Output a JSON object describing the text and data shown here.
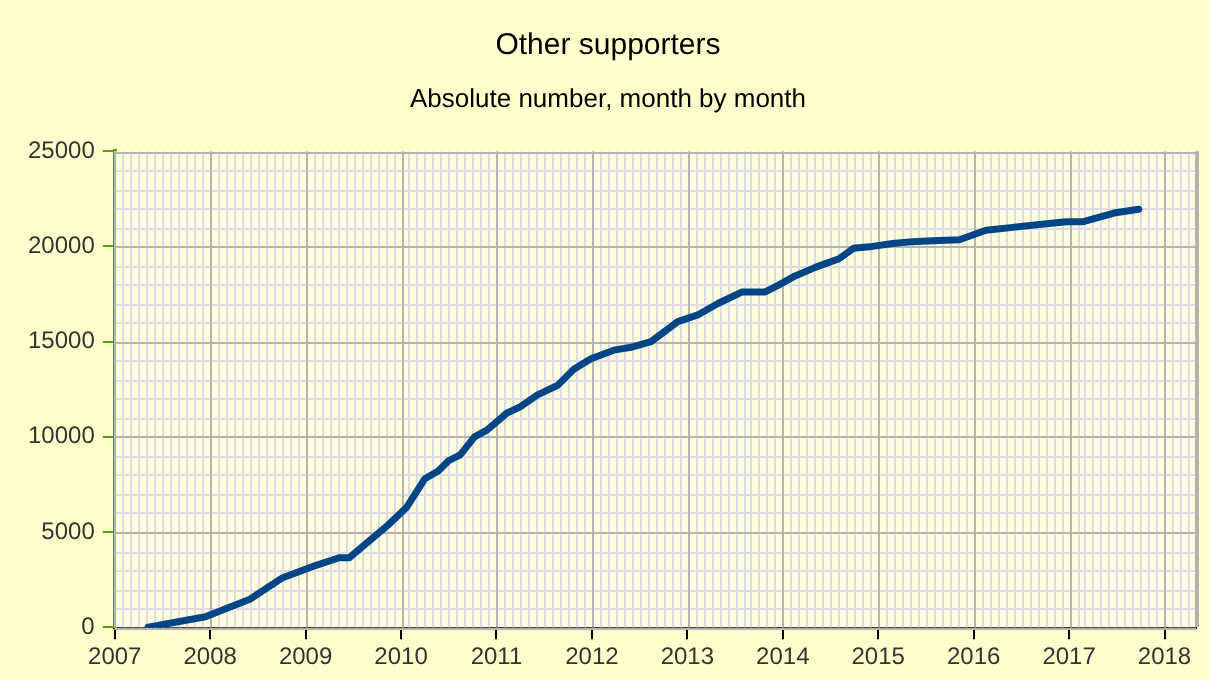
{
  "chart_data": {
    "type": "line",
    "title": "Other supporters",
    "subtitle": "Absolute number, month by month",
    "x": [
      2007.35,
      2007.95,
      2008.41,
      2008.76,
      2009.11,
      2009.35,
      2009.46,
      2009.6,
      2009.86,
      2010.06,
      2010.25,
      2010.39,
      2010.5,
      2010.62,
      2010.77,
      2010.9,
      2011.11,
      2011.24,
      2011.43,
      2011.64,
      2011.81,
      2011.99,
      2012.23,
      2012.41,
      2012.62,
      2012.9,
      2013.11,
      2013.32,
      2013.57,
      2013.81,
      2013.95,
      2014.13,
      2014.34,
      2014.59,
      2014.74,
      2014.94,
      2015.15,
      2015.36,
      2015.57,
      2015.85,
      2016.13,
      2016.41,
      2016.69,
      2016.97,
      2017.15,
      2017.47,
      2017.73
    ],
    "series": [
      {
        "color": "#004586",
        "values": [
          0,
          550,
          1450,
          2600,
          3250,
          3650,
          3650,
          4250,
          5350,
          6300,
          7800,
          8200,
          8750,
          9050,
          10000,
          10350,
          11250,
          11550,
          12200,
          12700,
          13550,
          14100,
          14550,
          14700,
          15000,
          16050,
          16400,
          17000,
          17600,
          17600,
          17950,
          18450,
          18900,
          19350,
          19900,
          20000,
          20150,
          20250,
          20300,
          20350,
          20850,
          21000,
          21150,
          21300,
          21300,
          21750,
          21950
        ]
      }
    ],
    "xlim": [
      2007,
      2018.33
    ],
    "xticks": [
      2007,
      2008,
      2009,
      2010,
      2011,
      2012,
      2013,
      2014,
      2015,
      2016,
      2017,
      2018
    ],
    "ylim": [
      0,
      25000
    ],
    "yticks": [
      0,
      5000,
      10000,
      15000,
      20000,
      25000
    ],
    "grid": true,
    "legend": false,
    "marker": "none",
    "line_style": "solid"
  }
}
